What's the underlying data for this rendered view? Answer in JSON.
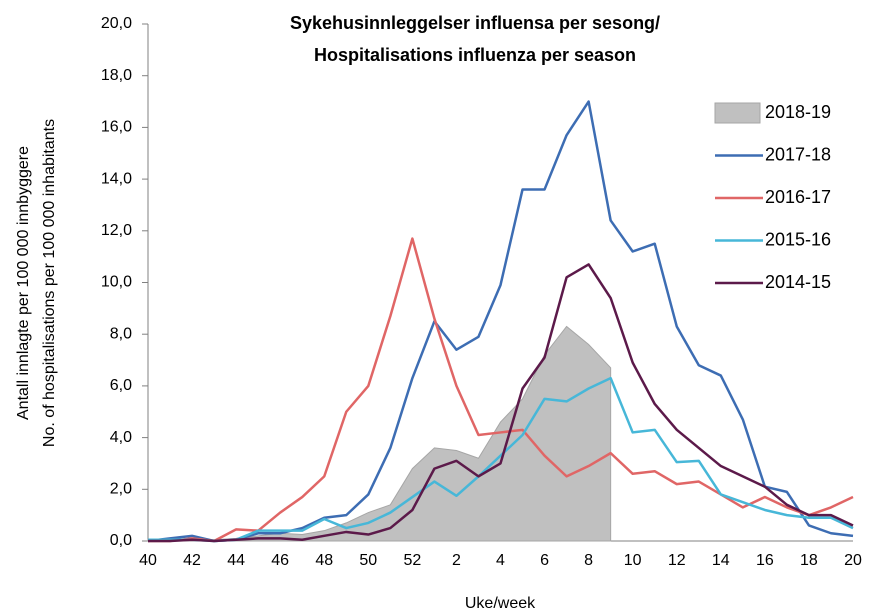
{
  "chart_data": {
    "type": "line",
    "title": [
      "Sykehusinnleggelser influensa per sesong/",
      "Hospitalisations influenza per season"
    ],
    "x_label": "Uke/week",
    "y_label": [
      "Antall innlagte per 100 000 innbyggere",
      "No. of hospitalisations per 100 000 inhabitants"
    ],
    "categories": [
      "40",
      null,
      "42",
      null,
      "44",
      null,
      "46",
      null,
      "48",
      null,
      "50",
      null,
      "52",
      null,
      "2",
      null,
      "4",
      null,
      "6",
      null,
      "8",
      null,
      "10",
      null,
      "12",
      null,
      "14",
      null,
      "16",
      null,
      "18",
      null,
      "20"
    ],
    "ylim": [
      0,
      20
    ],
    "yticks": [
      {
        "value": 0,
        "label": "0,0"
      },
      {
        "value": 2,
        "label": "2,0"
      },
      {
        "value": 4,
        "label": "4,0"
      },
      {
        "value": 6,
        "label": "6,0"
      },
      {
        "value": 8,
        "label": "8,0"
      },
      {
        "value": 10,
        "label": "10,0"
      },
      {
        "value": 12,
        "label": "12,0"
      },
      {
        "value": 14,
        "label": "14,0"
      },
      {
        "value": 16,
        "label": "16,0"
      },
      {
        "value": 18,
        "label": "18,0"
      },
      {
        "value": 20,
        "label": "20,0"
      }
    ],
    "legend": "upper right",
    "series": [
      {
        "name": "2018-19",
        "kind": "area",
        "color": "#c0c0c0",
        "values": [
          0.05,
          0.05,
          0.1,
          0.05,
          0.1,
          0.2,
          0.3,
          0.25,
          0.4,
          0.7,
          1.1,
          1.4,
          2.8,
          3.6,
          3.5,
          3.2,
          4.6,
          5.5,
          7.2,
          8.3,
          7.6,
          6.7,
          null,
          null,
          null,
          null,
          null,
          null,
          null,
          null,
          null,
          null,
          null
        ]
      },
      {
        "name": "2017-18",
        "kind": "line",
        "color": "#3d6db3",
        "values": [
          0,
          0.1,
          0.2,
          0,
          0.05,
          0.3,
          0.3,
          0.5,
          0.9,
          1.0,
          1.8,
          3.6,
          6.3,
          8.5,
          7.4,
          7.9,
          9.9,
          13.6,
          13.6,
          15.7,
          17.0,
          12.4,
          11.2,
          11.5,
          8.3,
          6.8,
          6.4,
          4.7,
          2.1,
          1.9,
          0.6,
          0.3,
          0.2
        ]
      },
      {
        "name": "2016-17",
        "kind": "line",
        "color": "#e06666",
        "values": [
          0,
          0,
          0.1,
          0,
          0.45,
          0.4,
          1.1,
          1.7,
          2.5,
          5.0,
          6.0,
          8.7,
          11.7,
          8.6,
          6.0,
          4.1,
          4.2,
          4.3,
          3.3,
          2.5,
          2.9,
          3.4,
          2.6,
          2.7,
          2.2,
          2.3,
          1.8,
          1.3,
          1.7,
          1.3,
          1.0,
          1.3,
          1.7
        ]
      },
      {
        "name": "2015-16",
        "kind": "line",
        "color": "#47b7d8",
        "values": [
          0.05,
          0.05,
          0.05,
          0,
          0.05,
          0.4,
          0.4,
          0.4,
          0.85,
          0.5,
          0.7,
          1.1,
          1.7,
          2.3,
          1.75,
          2.5,
          3.3,
          4.1,
          5.5,
          5.4,
          5.9,
          6.3,
          4.2,
          4.3,
          3.05,
          3.1,
          1.8,
          1.5,
          1.2,
          1.0,
          0.9,
          0.9,
          0.5
        ]
      },
      {
        "name": "2014-15",
        "kind": "line",
        "color": "#5c1a4a",
        "values": [
          0,
          0,
          0.05,
          0,
          0.05,
          0.1,
          0.1,
          0.05,
          0.2,
          0.35,
          0.25,
          0.5,
          1.2,
          2.8,
          3.1,
          2.5,
          3.0,
          5.9,
          7.1,
          10.2,
          10.7,
          9.4,
          6.9,
          5.3,
          4.3,
          3.6,
          2.9,
          2.5,
          2.1,
          1.4,
          1.0,
          1.0,
          0.6
        ]
      }
    ]
  }
}
